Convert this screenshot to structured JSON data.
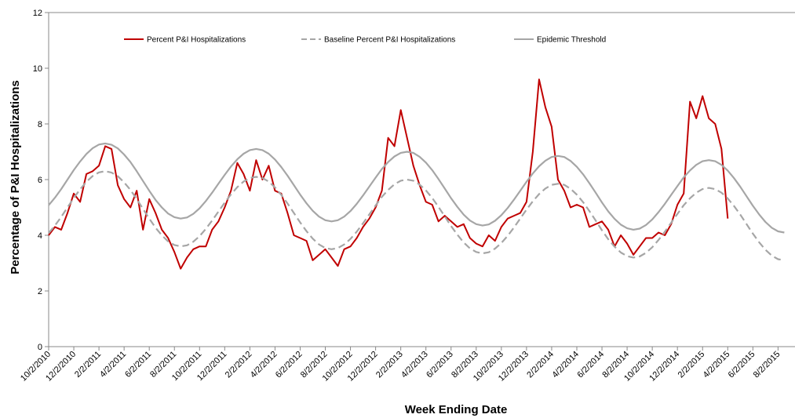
{
  "chart_data": {
    "type": "line",
    "y_label": "Percentage of P&I Hospitalizations",
    "x_label": "Week Ending Date",
    "legend_position": "top",
    "grid": false,
    "categories": [
      "10/2/2010",
      null,
      null,
      null,
      "12/2/2010",
      null,
      null,
      null,
      "2/2/2011",
      null,
      null,
      null,
      "4/2/2011",
      null,
      null,
      null,
      "6/2/2011",
      null,
      null,
      null,
      "8/2/2011",
      null,
      null,
      null,
      "10/2/2011",
      null,
      null,
      null,
      "12/2/2011",
      null,
      null,
      null,
      "2/2/2012",
      null,
      null,
      null,
      "4/2/2012",
      null,
      null,
      null,
      "6/2/2012",
      null,
      null,
      null,
      "8/2/2012",
      null,
      null,
      null,
      "10/2/2012",
      null,
      null,
      null,
      "12/2/2012",
      null,
      null,
      null,
      "2/2/2013",
      null,
      null,
      null,
      "4/2/2013",
      null,
      null,
      null,
      "6/2/2013",
      null,
      null,
      null,
      "8/2/2013",
      null,
      null,
      null,
      "10/2/2013",
      null,
      null,
      null,
      "12/2/2013",
      null,
      null,
      null,
      "2/2/2014",
      null,
      null,
      null,
      "4/2/2014",
      null,
      null,
      null,
      "6/2/2014",
      null,
      null,
      null,
      "8/2/2014",
      null,
      null,
      null,
      "10/2/2014",
      null,
      null,
      null,
      "12/2/2014",
      null,
      null,
      null,
      "2/2/2015",
      null,
      null,
      null,
      "4/2/2015",
      null,
      null,
      null,
      "6/2/2015",
      null,
      null,
      null,
      "8/2/2015",
      null
    ],
    "series": [
      {
        "name": "Percent P&I Hospitalizations",
        "color": "#c00000",
        "dashed": false,
        "values": [
          4.0,
          4.3,
          4.2,
          4.8,
          5.5,
          5.2,
          6.2,
          6.3,
          6.5,
          7.2,
          7.1,
          5.8,
          5.3,
          5.0,
          5.6,
          4.2,
          5.3,
          4.8,
          4.2,
          3.9,
          3.4,
          2.8,
          3.2,
          3.5,
          3.6,
          3.6,
          4.2,
          4.5,
          5.0,
          5.6,
          6.6,
          6.2,
          5.6,
          6.7,
          6.0,
          6.5,
          5.6,
          5.5,
          4.8,
          4.0,
          3.9,
          3.8,
          3.1,
          3.3,
          3.5,
          3.2,
          2.9,
          3.5,
          3.6,
          3.9,
          4.3,
          4.6,
          5.0,
          5.6,
          7.5,
          7.2,
          8.5,
          7.5,
          6.5,
          5.8,
          5.2,
          5.1,
          4.5,
          4.7,
          4.5,
          4.3,
          4.4,
          3.9,
          3.7,
          3.6,
          4.0,
          3.8,
          4.3,
          4.6,
          4.7,
          4.8,
          5.2,
          7.0,
          9.6,
          8.6,
          7.9,
          6.0,
          5.6,
          5.0,
          5.1,
          5.0,
          4.3,
          4.4,
          4.5,
          4.2,
          3.6,
          4.0,
          3.7,
          3.3,
          3.6,
          3.9,
          3.9,
          4.1,
          4.0,
          4.4,
          5.1,
          5.5,
          8.8,
          8.2,
          9.0,
          8.2,
          8.0,
          7.1,
          4.6,
          null,
          null,
          null,
          null,
          null,
          null,
          null,
          null,
          null
        ]
      },
      {
        "name": "Baseline Percent P&I Hospitalizations",
        "color": "#a6a6a6",
        "dashed": true,
        "values": [
          4.08,
          4.35,
          4.66,
          5.0,
          5.34,
          5.65,
          5.92,
          6.13,
          6.26,
          6.3,
          6.25,
          6.12,
          5.9,
          5.63,
          5.3,
          4.95,
          4.6,
          4.27,
          4.0,
          3.78,
          3.65,
          3.6,
          3.64,
          3.77,
          3.97,
          4.23,
          4.53,
          4.85,
          5.17,
          5.47,
          5.73,
          5.93,
          6.06,
          6.1,
          6.06,
          5.93,
          5.72,
          5.45,
          5.14,
          4.8,
          4.46,
          4.15,
          3.88,
          3.67,
          3.54,
          3.5,
          3.54,
          3.67,
          3.87,
          4.13,
          4.43,
          4.75,
          5.07,
          5.38,
          5.63,
          5.83,
          5.96,
          6.0,
          5.96,
          5.82,
          5.61,
          5.34,
          5.02,
          4.68,
          4.33,
          4.02,
          3.74,
          3.53,
          3.4,
          3.35,
          3.39,
          3.52,
          3.72,
          3.98,
          4.28,
          4.6,
          4.92,
          5.22,
          5.48,
          5.68,
          5.81,
          5.85,
          5.81,
          5.67,
          5.46,
          5.19,
          4.87,
          4.53,
          4.18,
          3.86,
          3.59,
          3.38,
          3.25,
          3.2,
          3.24,
          3.37,
          3.57,
          3.83,
          4.13,
          4.45,
          4.77,
          5.08,
          5.33,
          5.53,
          5.66,
          5.7,
          5.66,
          5.53,
          5.32,
          5.05,
          4.74,
          4.4,
          4.06,
          3.75,
          3.48,
          3.27,
          3.14,
          3.1
        ]
      },
      {
        "name": "Epidemic Threshold",
        "color": "#a6a6a6",
        "dashed": false,
        "values": [
          5.08,
          5.35,
          5.66,
          6.0,
          6.34,
          6.65,
          6.92,
          7.13,
          7.26,
          7.3,
          7.25,
          7.12,
          6.9,
          6.63,
          6.3,
          5.95,
          5.6,
          5.27,
          5.0,
          4.78,
          4.65,
          4.6,
          4.64,
          4.77,
          4.97,
          5.23,
          5.53,
          5.85,
          6.17,
          6.47,
          6.73,
          6.93,
          7.06,
          7.1,
          7.06,
          6.93,
          6.72,
          6.45,
          6.14,
          5.8,
          5.46,
          5.15,
          4.88,
          4.67,
          4.54,
          4.5,
          4.54,
          4.67,
          4.87,
          5.13,
          5.43,
          5.75,
          6.07,
          6.38,
          6.63,
          6.83,
          6.96,
          7.0,
          6.96,
          6.82,
          6.61,
          6.34,
          6.02,
          5.68,
          5.33,
          5.02,
          4.74,
          4.53,
          4.4,
          4.35,
          4.39,
          4.52,
          4.72,
          4.98,
          5.28,
          5.6,
          5.92,
          6.22,
          6.48,
          6.68,
          6.81,
          6.85,
          6.81,
          6.67,
          6.46,
          6.19,
          5.87,
          5.53,
          5.18,
          4.86,
          4.59,
          4.38,
          4.25,
          4.2,
          4.24,
          4.37,
          4.57,
          4.83,
          5.13,
          5.45,
          5.77,
          6.08,
          6.33,
          6.53,
          6.66,
          6.7,
          6.66,
          6.53,
          6.32,
          6.05,
          5.74,
          5.4,
          5.06,
          4.75,
          4.48,
          4.27,
          4.14,
          4.1
        ]
      }
    ],
    "ylim": [
      0,
      12
    ],
    "yticks": [
      0,
      2,
      4,
      6,
      8,
      10,
      12
    ]
  }
}
